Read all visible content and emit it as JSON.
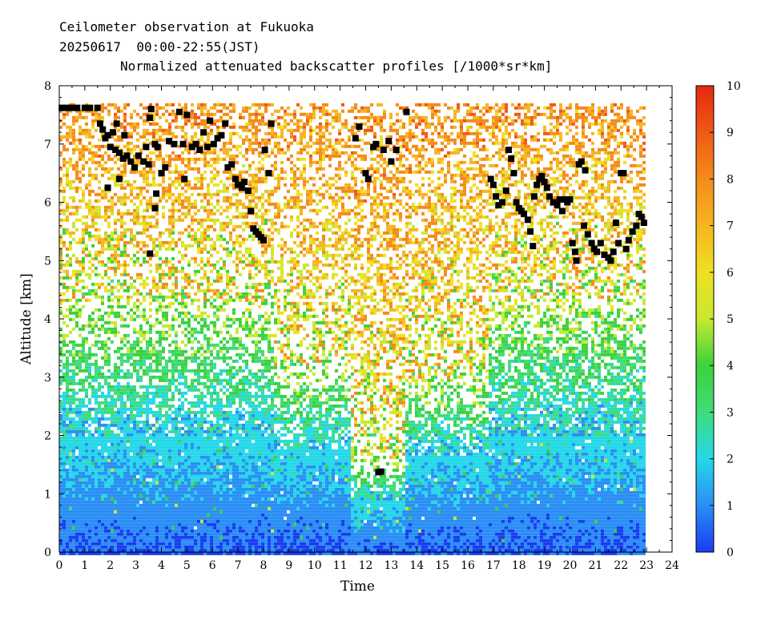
{
  "header": {
    "line1": "Ceilometer observation at Fukuoka",
    "line2": "20250617  00:00-22:55(JST)",
    "line3": "Normalized attenuated backscatter profiles [/1000*sr*km]"
  },
  "chart_data": {
    "type": "heatmap",
    "title": "Normalized attenuated backscatter profiles [/1000*sr*km]",
    "xlabel": "Time",
    "ylabel": "Altitude [km]",
    "xlim": [
      0,
      24
    ],
    "ylim": [
      0,
      8
    ],
    "x_ticks": [
      "0",
      "1",
      "2",
      "3",
      "4",
      "5",
      "6",
      "7",
      "8",
      "9",
      "10",
      "11",
      "12",
      "13",
      "14",
      "15",
      "16",
      "17",
      "18",
      "19",
      "20",
      "21",
      "22",
      "23",
      "24"
    ],
    "y_ticks": [
      "0",
      "1",
      "2",
      "3",
      "4",
      "5",
      "6",
      "7",
      "8"
    ],
    "data_time_range": [
      0,
      22.92
    ],
    "data_altitude_top": 7.7,
    "colorbar": {
      "range": [
        0,
        10
      ],
      "ticks": [
        "0",
        "1",
        "2",
        "3",
        "4",
        "5",
        "6",
        "7",
        "8",
        "9",
        "10"
      ],
      "colors": [
        "#1a3cf0",
        "#2a8ef5",
        "#25d8e8",
        "#3fdc7a",
        "#3bd23b",
        "#c8e830",
        "#f0e020",
        "#f6b520",
        "#f48b1a",
        "#ef5a14",
        "#e62810"
      ]
    },
    "zones": [
      {
        "t0": 0,
        "t1": 8.3,
        "dense_top": 2.0,
        "sparse_top": 4.3
      },
      {
        "t0": 8.3,
        "t1": 11.3,
        "dense_top": 1.8,
        "sparse_top": 3.2
      },
      {
        "t0": 11.3,
        "t1": 13.5,
        "dense_top": 0.9,
        "sparse_top": 1.6
      },
      {
        "t0": 13.5,
        "t1": 16.8,
        "dense_top": 1.7,
        "sparse_top": 3.0
      },
      {
        "t0": 16.8,
        "t1": 22.92,
        "dense_top": 2.0,
        "sparse_top": 4.4
      }
    ],
    "cloud_base_points": [
      [
        0.1,
        7.62
      ],
      [
        0.3,
        7.62
      ],
      [
        0.5,
        7.62
      ],
      [
        0.7,
        7.62
      ],
      [
        1.0,
        7.62
      ],
      [
        1.2,
        7.62
      ],
      [
        1.5,
        7.62
      ],
      [
        1.6,
        7.35
      ],
      [
        1.7,
        7.25
      ],
      [
        1.8,
        7.1
      ],
      [
        1.9,
        7.15
      ],
      [
        2.0,
        6.95
      ],
      [
        2.1,
        7.2
      ],
      [
        2.2,
        6.9
      ],
      [
        2.35,
        6.85
      ],
      [
        2.5,
        6.75
      ],
      [
        2.65,
        6.8
      ],
      [
        2.8,
        6.7
      ],
      [
        2.95,
        6.6
      ],
      [
        3.1,
        6.8
      ],
      [
        3.3,
        6.7
      ],
      [
        3.4,
        6.95
      ],
      [
        3.5,
        6.65
      ],
      [
        3.55,
        7.45
      ],
      [
        3.6,
        7.6
      ],
      [
        3.75,
        7.0
      ],
      [
        3.85,
        6.95
      ],
      [
        4.0,
        6.5
      ],
      [
        4.15,
        6.6
      ],
      [
        4.3,
        7.05
      ],
      [
        4.5,
        7.0
      ],
      [
        4.7,
        7.55
      ],
      [
        4.85,
        7.0
      ],
      [
        5.0,
        7.5
      ],
      [
        5.2,
        6.95
      ],
      [
        5.35,
        7.0
      ],
      [
        5.5,
        6.9
      ],
      [
        5.65,
        7.2
      ],
      [
        5.8,
        6.95
      ],
      [
        5.9,
        7.4
      ],
      [
        6.05,
        7.0
      ],
      [
        6.2,
        7.1
      ],
      [
        6.35,
        7.15
      ],
      [
        6.5,
        7.35
      ],
      [
        6.6,
        6.6
      ],
      [
        6.75,
        6.65
      ],
      [
        6.9,
        6.4
      ],
      [
        7.0,
        6.3
      ],
      [
        7.15,
        6.25
      ],
      [
        7.25,
        6.35
      ],
      [
        7.4,
        6.2
      ],
      [
        7.5,
        5.85
      ],
      [
        7.6,
        5.55
      ],
      [
        7.7,
        5.5
      ],
      [
        7.8,
        5.45
      ],
      [
        7.9,
        5.4
      ],
      [
        8.0,
        5.35
      ],
      [
        8.05,
        6.9
      ],
      [
        8.2,
        6.5
      ],
      [
        8.3,
        7.35
      ],
      [
        1.9,
        6.25
      ],
      [
        2.35,
        6.4
      ],
      [
        3.55,
        5.12
      ],
      [
        3.75,
        5.9
      ],
      [
        3.8,
        6.15
      ],
      [
        4.9,
        6.4
      ],
      [
        2.25,
        7.35
      ],
      [
        2.55,
        7.15
      ],
      [
        11.6,
        7.1
      ],
      [
        11.75,
        7.3
      ],
      [
        12.0,
        6.5
      ],
      [
        12.1,
        6.4
      ],
      [
        12.3,
        6.95
      ],
      [
        12.4,
        7.0
      ],
      [
        12.7,
        6.9
      ],
      [
        12.9,
        7.05
      ],
      [
        13.0,
        6.7
      ],
      [
        13.2,
        6.9
      ],
      [
        13.6,
        7.55
      ],
      [
        12.5,
        1.37
      ],
      [
        12.6,
        1.38
      ],
      [
        16.9,
        6.4
      ],
      [
        17.0,
        6.3
      ],
      [
        17.1,
        6.1
      ],
      [
        17.2,
        5.95
      ],
      [
        17.35,
        6.0
      ],
      [
        17.5,
        6.2
      ],
      [
        17.6,
        6.9
      ],
      [
        17.7,
        6.75
      ],
      [
        17.8,
        6.5
      ],
      [
        17.9,
        6.0
      ],
      [
        18.0,
        5.9
      ],
      [
        18.1,
        5.85
      ],
      [
        18.2,
        5.8
      ],
      [
        18.35,
        5.7
      ],
      [
        18.45,
        5.5
      ],
      [
        18.55,
        5.25
      ],
      [
        18.6,
        6.1
      ],
      [
        18.7,
        6.3
      ],
      [
        18.8,
        6.4
      ],
      [
        18.9,
        6.45
      ],
      [
        19.0,
        6.35
      ],
      [
        19.1,
        6.25
      ],
      [
        19.2,
        6.1
      ],
      [
        19.35,
        6.0
      ],
      [
        19.5,
        5.95
      ],
      [
        19.6,
        6.05
      ],
      [
        19.7,
        5.85
      ],
      [
        19.8,
        6.05
      ],
      [
        19.9,
        6.0
      ],
      [
        20.0,
        6.05
      ],
      [
        20.1,
        5.3
      ],
      [
        20.2,
        5.15
      ],
      [
        20.25,
        5.0
      ],
      [
        20.35,
        6.65
      ],
      [
        20.45,
        6.7
      ],
      [
        20.55,
        5.6
      ],
      [
        20.6,
        6.55
      ],
      [
        20.7,
        5.45
      ],
      [
        20.85,
        5.3
      ],
      [
        20.95,
        5.2
      ],
      [
        21.05,
        5.15
      ],
      [
        21.2,
        5.3
      ],
      [
        21.35,
        5.1
      ],
      [
        21.5,
        5.05
      ],
      [
        21.6,
        5.0
      ],
      [
        21.7,
        5.15
      ],
      [
        21.8,
        5.65
      ],
      [
        21.9,
        5.3
      ],
      [
        22.0,
        6.5
      ],
      [
        22.1,
        6.5
      ],
      [
        22.2,
        5.2
      ],
      [
        22.3,
        5.35
      ],
      [
        22.45,
        5.5
      ],
      [
        22.6,
        5.6
      ],
      [
        22.7,
        5.8
      ],
      [
        22.8,
        5.75
      ],
      [
        22.9,
        5.65
      ]
    ]
  }
}
